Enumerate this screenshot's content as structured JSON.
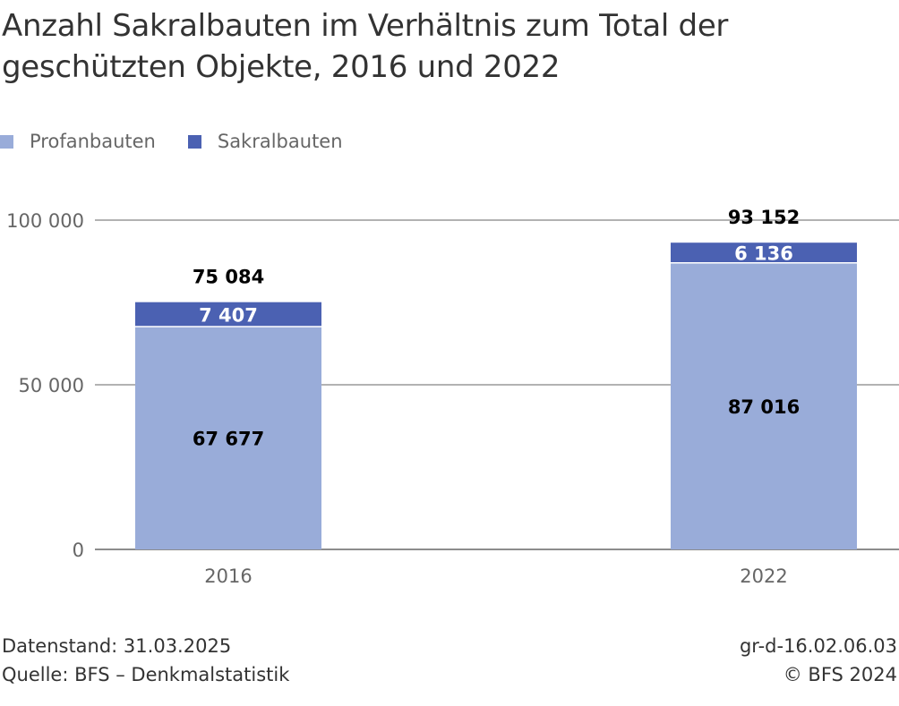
{
  "title": "Anzahl Sakralbauten im Verhältnis zum Total der geschützten Objekte, 2016 und 2022",
  "colors": {
    "profan": "#99acd9",
    "sakral": "#4b61b2",
    "grid": "#666666"
  },
  "legend": [
    {
      "label": "Profanbauten",
      "color": "#99acd9"
    },
    {
      "label": "Sakralbauten",
      "color": "#4b61b2"
    }
  ],
  "chart_data": {
    "type": "bar",
    "stacked": true,
    "title": "Anzahl Sakralbauten im Verhältnis zum Total der geschützten Objekte, 2016 und 2022",
    "categories": [
      "2016",
      "2022"
    ],
    "series": [
      {
        "name": "Profanbauten",
        "values": [
          67677,
          87016
        ],
        "labels": [
          "67 677",
          "87 016"
        ]
      },
      {
        "name": "Sakralbauten",
        "values": [
          7407,
          6136
        ],
        "labels": [
          "7 407",
          "6 136"
        ]
      }
    ],
    "totals": [
      75084,
      93152
    ],
    "total_labels": [
      "75 084",
      "93 152"
    ],
    "ylim": [
      0,
      100000
    ],
    "yticks": [
      0,
      50000,
      100000
    ],
    "ytick_labels": [
      "0",
      "50 000",
      "100 000"
    ],
    "grid": true,
    "legend_position": "top-left"
  },
  "footer": {
    "datenstand": "Datenstand: 31.03.2025",
    "quelle": "Quelle: BFS – Denkmalstatistik",
    "code": "gr-d-16.02.06.03",
    "copyright": "© BFS 2024"
  }
}
